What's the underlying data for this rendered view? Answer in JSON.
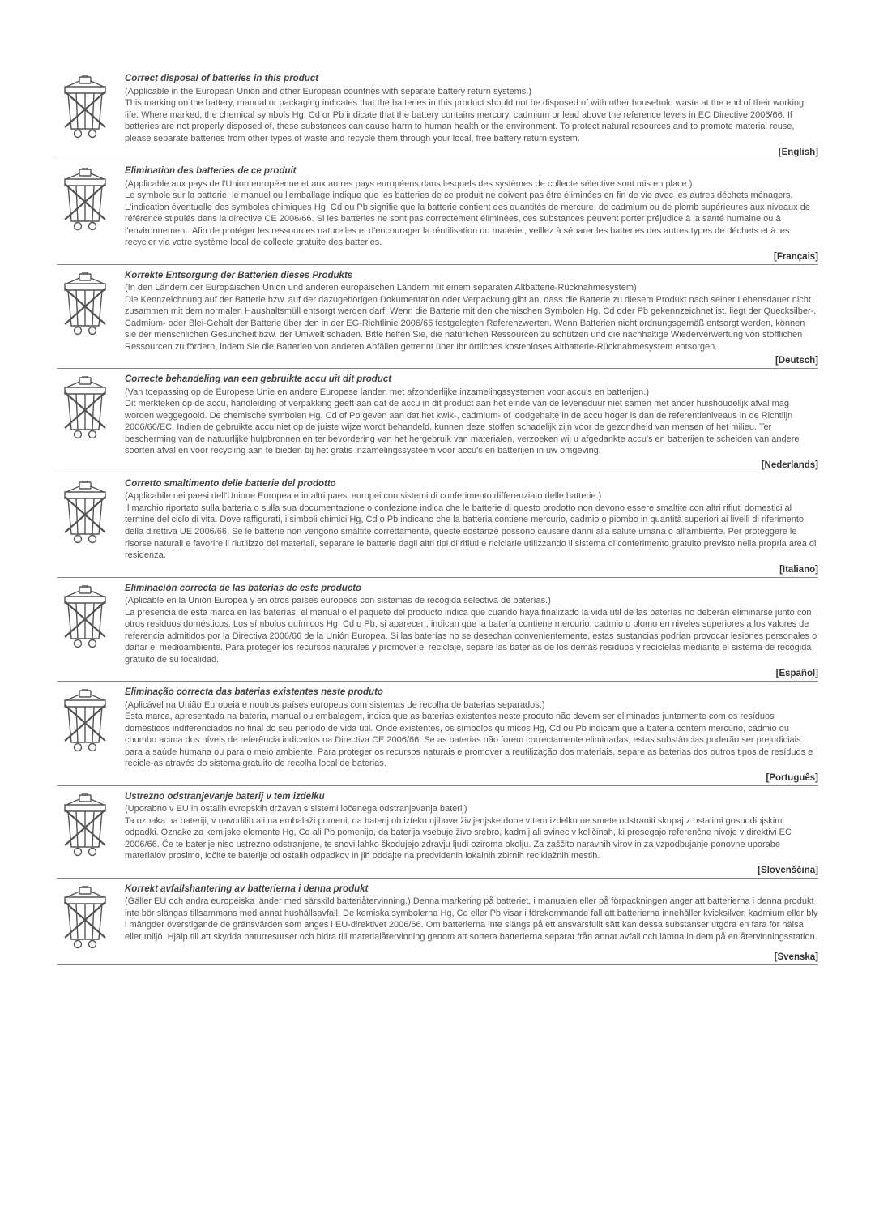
{
  "text_color": "#555555",
  "title_color": "#444444",
  "lang_color": "#333333",
  "divider_color": "#888888",
  "background_color": "#ffffff",
  "title_fontsize": 11.5,
  "body_fontsize": 11,
  "title_weight": "bold",
  "title_style": "italic",
  "sections": [
    {
      "title": "Correct disposal of batteries in this product",
      "body": "(Applicable in the European Union and other European countries with separate battery return systems.)\nThis marking on the battery, manual or packaging indicates that the batteries in this product should not be disposed of with other household waste at the end of their working life. Where marked, the chemical symbols Hg, Cd or Pb indicate that the battery contains mercury, cadmium or lead above the reference levels in EC Directive 2006/66. If batteries are not properly disposed of, these substances can cause harm to human health or the environment. To protect natural resources and to promote material reuse, please separate batteries from other types of waste and recycle them through your local, free battery return system.",
      "language": "[English]"
    },
    {
      "title": "Elimination des batteries de ce produit",
      "body": "(Applicable aux pays de l'Union européenne et aux autres pays européens dans lesquels des systèmes de collecte sélective sont mis en place.)\nLe symbole sur la batterie, le manuel ou l'emballage indique que les batteries de ce produit ne doivent pas être éliminées en fin de vie avec les autres déchets ménagers. L'indication éventuelle des symboles chimiques Hg, Cd ou Pb signifie que la batterie contient des quantités de mercure, de cadmium ou de plomb supérieures aux niveaux de référence stipulés dans la directive CE 2006/66. Si les batteries ne sont pas correctement éliminées, ces substances peuvent porter préjudice à la santé humaine ou à l'environnement. Afin de protéger les ressources naturelles et d'encourager la réutilisation du matériel, veillez à séparer les batteries des autres types de déchets et à les recycler via votre système local de collecte gratuite des batteries.",
      "language": "[Français]"
    },
    {
      "title": "Korrekte Entsorgung der Batterien dieses Produkts",
      "body": "(In den Ländern der Europäischen Union und anderen europäischen Ländern mit einem separaten Altbatterie-Rücknahmesystem)\nDie Kennzeichnung auf der Batterie bzw. auf der dazugehörigen Dokumentation oder Verpackung gibt an, dass die Batterie zu diesem Produkt nach seiner Lebensdauer nicht zusammen mit dem normalen Haushaltsmüll entsorgt werden darf. Wenn die Batterie mit den chemischen Symbolen Hg, Cd oder Pb gekennzeichnet ist, liegt der Quecksilber-, Cadmium- oder Blei-Gehalt der Batterie über den in der EG-Richtlinie 2006/66 festgelegten Referenzwerten. Wenn Batterien nicht ordnungsgemäß entsorgt werden, können sie der menschlichen Gesundheit bzw. der Umwelt schaden. Bitte helfen Sie, die natürlichen Ressourcen zu schützen und die nachhaltige Wiederverwertung von stofflichen Ressourcen zu fördern, indem Sie die Batterien von anderen Abfällen getrennt über Ihr örtliches kostenloses Altbatterie-Rücknahmesystem entsorgen.",
      "language": "[Deutsch]"
    },
    {
      "title": "Correcte behandeling van een gebruikte accu uit dit product",
      "body": "(Van toepassing op de Europese Unie en andere Europese landen met afzonderlijke inzamelingssystemen voor accu's en batterijen.)\nDit merkteken op de accu, handleiding of verpakking geeft aan dat de accu in dit product aan het einde van de levensduur niet samen met ander huishoudelijk afval mag worden weggegooid. De chemische symbolen Hg, Cd of Pb geven aan dat het kwik-, cadmium- of loodgehalte in de accu hoger is dan de referentieniveaus in de Richtlijn 2006/66/EC. Indien de gebruikte accu niet op de juiste wijze wordt behandeld, kunnen deze stoffen schadelijk zijn voor de gezondheid van mensen of het milieu. Ter bescherming van de natuurlijke hulpbronnen en ter bevordering van het hergebruik van materialen, verzoeken wij u afgedankte accu's en batterijen te scheiden van andere soorten afval en voor recycling aan te bieden bij het gratis inzamelingssysteem voor accu's en batterijen in uw omgeving.",
      "language": "[Nederlands]"
    },
    {
      "title": "Corretto smaltimento delle batterie del prodotto",
      "body": "(Applicabile nei paesi dell'Unione Europea e in altri paesi europei con sistemi di conferimento differenziato delle batterie.)\nIl marchio riportato sulla batteria o sulla sua documentazione o confezione indica che le batterie di questo prodotto non devono essere smaltite con altri rifiuti domestici al termine del ciclo di vita. Dove raffigurati, i simboli chimici Hg, Cd o Pb indicano che la batteria contiene mercurio, cadmio o piombo in quantità superiori ai livelli di riferimento della direttiva UE 2006/66. Se le batterie non vengono smaltite correttamente, queste sostanze possono causare danni alla salute umana o all'ambiente. Per proteggere le risorse naturali e favorire il riutilizzo dei materiali, separare le batterie dagli altri tipi di rifiuti e riciclarle utilizzando il sistema di conferimento gratuito previsto nella propria area di residenza.",
      "language": "[Italiano]"
    },
    {
      "title": "Eliminación correcta de las baterías de este producto",
      "body": "(Aplicable en la Unión Europea y en otros países europeos con sistemas de recogida selectiva de baterías.)\nLa presencia de esta marca en las baterías, el manual o el paquete del producto indica que cuando haya finalizado la vida útil de las baterías no deberán eliminarse junto con otros residuos domésticos. Los símbolos químicos Hg, Cd o Pb, si aparecen, indican que la batería contiene mercurio, cadmio o plomo en niveles superiores a los valores de referencia admitidos por la Directiva 2006/66 de la Unión Europea. Si las baterías no se desechan convenientemente, estas sustancias podrían provocar lesiones personales o dañar el medioambiente. Para proteger los recursos naturales y promover el reciclaje, separe las baterías de los demás residuos y recíclelas mediante el sistema de recogida gratuito de su localidad.",
      "language": "[Español]"
    },
    {
      "title": "Eliminação correcta das baterias existentes neste produto",
      "body": "(Aplicável na União Europeia e noutros países europeus com sistemas de recolha de baterias separados.)\nEsta marca, apresentada na bateria, manual ou embalagem, indica que as baterias existentes neste produto não devem ser eliminadas juntamente com os resíduos domésticos indiferenciados no final do seu período de vida útil. Onde existentes, os símbolos químicos Hg, Cd ou Pb indicam que a bateria contém mercúrio, cádmio ou chumbo acima dos níveis de referência indicados na Directiva CE 2006/66. Se as baterias não forem correctamente eliminadas, estas substâncias poderão ser prejudiciais para a saúde humana ou para o meio ambiente. Para proteger os recursos naturais e promover a reutilização dos materiais, separe as baterias dos outros tipos de resíduos e recicle-as através do sistema gratuito de recolha local de baterias.",
      "language": "[Português]"
    },
    {
      "title": "Ustrezno odstranjevanje baterij v tem izdelku",
      "body": "(Uporabno v EU in ostalih evropskih državah s sistemi ločenega odstranjevanja baterij)\nTa oznaka na bateriji, v navodilih ali na embalaži pomeni, da baterij ob izteku njihove življenjske dobe v tem izdelku ne smete odstraniti skupaj z ostalimi gospodinjskimi odpadki. Oznake za kemijske elemente Hg, Cd ali Pb pomenijo, da baterija vsebuje živo srebro, kadmij ali svinec v količinah, ki presegajo referenčne nivoje v direktivi EC 2006/66. Če te baterije niso ustrezno odstranjene, te snovi lahko škodujejo zdravju ljudi oziroma okolju. Za zaščito naravnih virov in za vzpodbujanje ponovne uporabe materialov prosimo, ločite te baterije od ostalih odpadkov in jih oddajte na predvidenih lokalnih zbirnih reciklažnih mestih.",
      "language": "[Slovenščina]"
    },
    {
      "title": "Korrekt avfallshantering av batterierna i denna produkt",
      "body": "(Gäller EU och andra europeiska länder med särskild batteriåtervinning.) Denna markering på batteriet, i manualen eller på förpackningen anger att batterierna i denna produkt inte bör slängas tillsammans med annat hushållsavfall. De kemiska symbolerna Hg, Cd eller Pb visar i förekommande fall att batterierna innehåller kvicksilver, kadmium eller bly i mängder överstigande de gränsvärden som anges i EU-direktivet 2006/66. Om batterierna inte slängs på ett ansvarsfullt sätt kan dessa substanser utgöra en fara för hälsa eller miljö. Hjälp till att skydda naturresurser och bidra till materialåtervinning genom att sortera batterierna separat från annat avfall och lämna in dem på en återvinningsstation.",
      "language": "[Svenska]"
    }
  ]
}
